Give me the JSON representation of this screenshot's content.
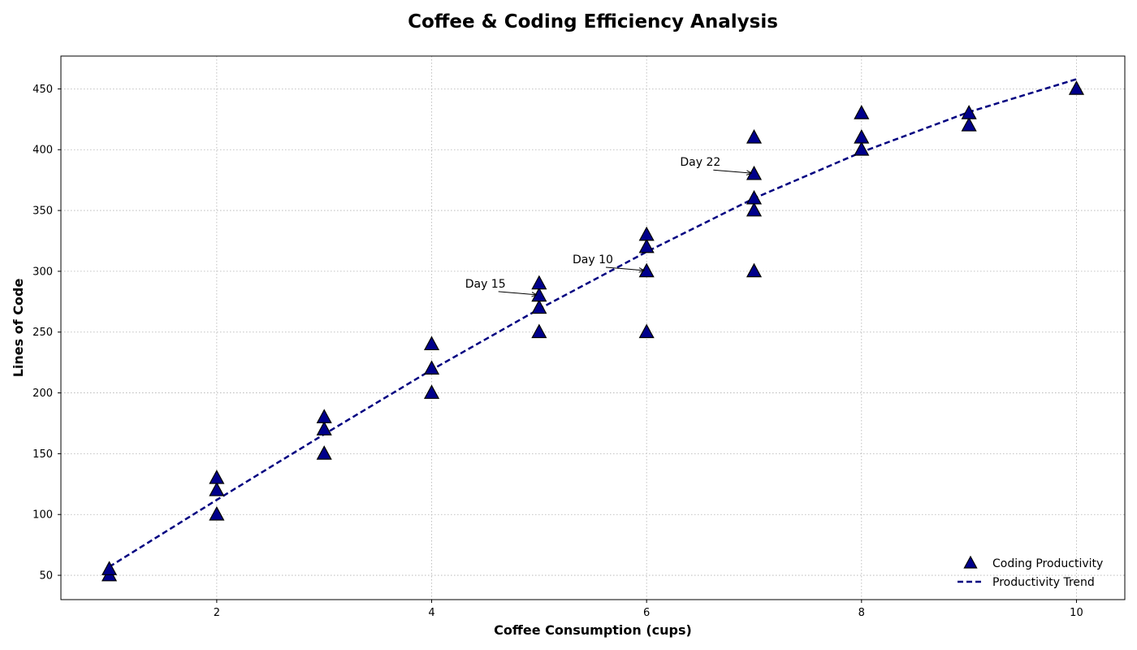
{
  "chart_data": {
    "type": "scatter",
    "title": "Coffee & Coding Efficiency Analysis",
    "xlabel": "Coffee Consumption (cups)",
    "ylabel": "Lines of Code",
    "xlim": [
      0.55,
      10.45
    ],
    "ylim": [
      30,
      477
    ],
    "xticks": [
      2,
      4,
      6,
      8,
      10
    ],
    "yticks": [
      50,
      100,
      150,
      200,
      250,
      300,
      350,
      400,
      450
    ],
    "grid": true,
    "legend_position": "lower-right",
    "series": [
      {
        "name": "Coding Productivity",
        "kind": "scatter",
        "marker": "triangle",
        "color": "#00008b",
        "points": [
          {
            "x": 1,
            "y": 50
          },
          {
            "x": 1,
            "y": 55
          },
          {
            "x": 2,
            "y": 100
          },
          {
            "x": 2,
            "y": 120
          },
          {
            "x": 2,
            "y": 130
          },
          {
            "x": 3,
            "y": 150
          },
          {
            "x": 3,
            "y": 170
          },
          {
            "x": 3,
            "y": 180
          },
          {
            "x": 4,
            "y": 200
          },
          {
            "x": 4,
            "y": 220
          },
          {
            "x": 4,
            "y": 240
          },
          {
            "x": 5,
            "y": 250
          },
          {
            "x": 5,
            "y": 270
          },
          {
            "x": 5,
            "y": 280
          },
          {
            "x": 5,
            "y": 290
          },
          {
            "x": 6,
            "y": 250
          },
          {
            "x": 6,
            "y": 300
          },
          {
            "x": 6,
            "y": 320
          },
          {
            "x": 6,
            "y": 330
          },
          {
            "x": 7,
            "y": 300
          },
          {
            "x": 7,
            "y": 350
          },
          {
            "x": 7,
            "y": 360
          },
          {
            "x": 7,
            "y": 380
          },
          {
            "x": 7,
            "y": 410
          },
          {
            "x": 8,
            "y": 400
          },
          {
            "x": 8,
            "y": 410
          },
          {
            "x": 8,
            "y": 430
          },
          {
            "x": 9,
            "y": 420
          },
          {
            "x": 9,
            "y": 430
          },
          {
            "x": 10,
            "y": 450
          }
        ]
      },
      {
        "name": "Productivity Trend",
        "kind": "line",
        "style": "dashed",
        "color": "#000080",
        "points": [
          {
            "x": 1,
            "y": 57
          },
          {
            "x": 2,
            "y": 112
          },
          {
            "x": 3,
            "y": 166
          },
          {
            "x": 4,
            "y": 219
          },
          {
            "x": 5,
            "y": 269
          },
          {
            "x": 6,
            "y": 316
          },
          {
            "x": 7,
            "y": 360
          },
          {
            "x": 8,
            "y": 398
          },
          {
            "x": 9,
            "y": 431
          },
          {
            "x": 10,
            "y": 458
          }
        ]
      }
    ],
    "annotations": [
      {
        "text": "Day 15",
        "x": 5,
        "y": 280,
        "text_x": 4.5,
        "text_y": 290
      },
      {
        "text": "Day 10",
        "x": 6,
        "y": 300,
        "text_x": 5.5,
        "text_y": 310
      },
      {
        "text": "Day 22",
        "x": 7,
        "y": 380,
        "text_x": 6.5,
        "text_y": 390
      }
    ]
  }
}
